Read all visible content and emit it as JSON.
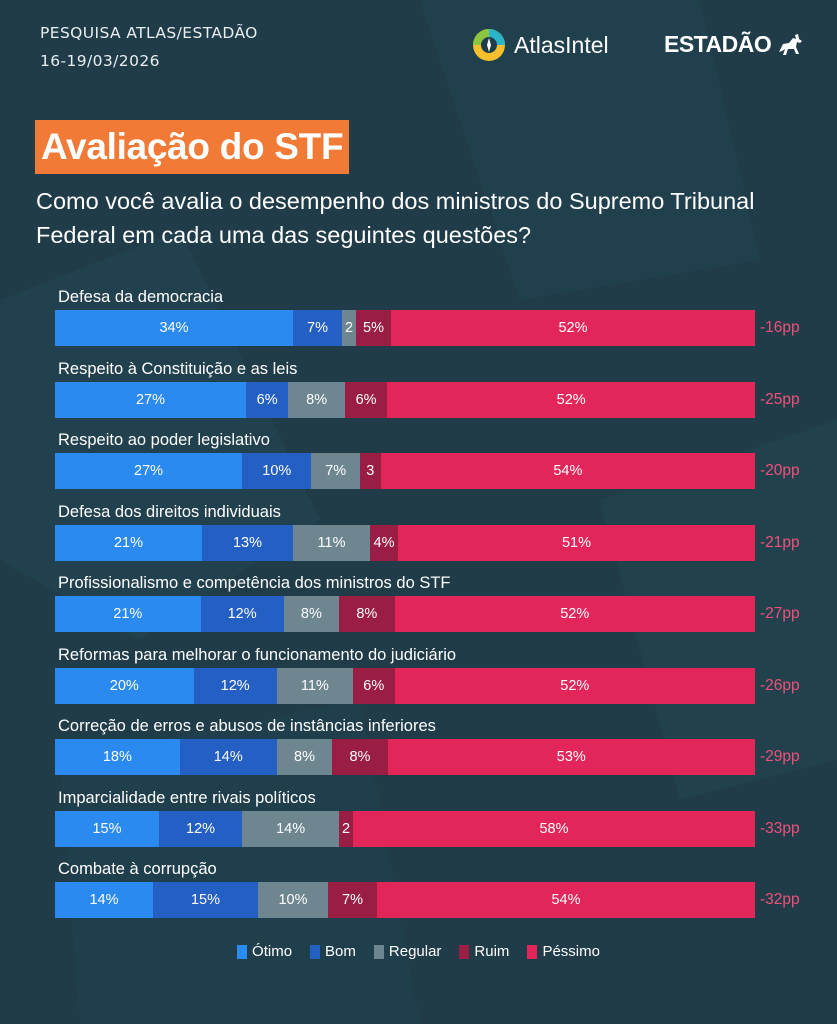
{
  "header": {
    "survey_label": "PESQUISA ATLAS/ESTADÃO",
    "survey_dates": "16-19/03/2026",
    "atlas_logo_text": "AtlasIntel",
    "estadao_logo_text": "ESTADÃO"
  },
  "colors": {
    "background": "#1f3c48",
    "title_bg": "#f07a36",
    "otimo": "#2a8af0",
    "bom": "#2460c4",
    "regular": "#6e8690",
    "ruim": "#9a1e44",
    "pessimo": "#e3265a",
    "net": "#f0507a"
  },
  "chart_data": {
    "type": "bar",
    "orientation": "horizontal-stacked-100",
    "title": "Avaliação do STF",
    "subtitle": "Como você avalia o desempenho dos ministros do Supremo Tribunal Federal em cada uma das seguintes questões?",
    "series_names": [
      "Ótimo",
      "Bom",
      "Regular",
      "Ruim",
      "Péssimo"
    ],
    "rows": [
      {
        "label": "Defesa da democracia",
        "values": [
          34,
          7,
          2,
          5,
          52
        ],
        "value_labels": [
          "34%",
          "7%",
          "2",
          "5%",
          "52%"
        ],
        "net": "-16pp"
      },
      {
        "label": "Respeito à Constituição e as leis",
        "values": [
          27,
          6,
          8,
          6,
          52
        ],
        "value_labels": [
          "27%",
          "6%",
          "8%",
          "6%",
          "52%"
        ],
        "net": "-25pp"
      },
      {
        "label": "Respeito ao poder legislativo",
        "values": [
          27,
          10,
          7,
          3,
          54
        ],
        "value_labels": [
          "27%",
          "10%",
          "7%",
          "3",
          "54%"
        ],
        "net": "-20pp"
      },
      {
        "label": "Defesa dos direitos individuais",
        "values": [
          21,
          13,
          11,
          4,
          51
        ],
        "value_labels": [
          "21%",
          "13%",
          "11%",
          "4%",
          "51%"
        ],
        "net": "-21pp"
      },
      {
        "label": "Profissionalismo e competência dos ministros do STF",
        "values": [
          21,
          12,
          8,
          8,
          52
        ],
        "value_labels": [
          "21%",
          "12%",
          "8%",
          "8%",
          "52%"
        ],
        "net": "-27pp"
      },
      {
        "label": "Reformas para melhorar o funcionamento do judiciário",
        "values": [
          20,
          12,
          11,
          6,
          52
        ],
        "value_labels": [
          "20%",
          "12%",
          "11%",
          "6%",
          "52%"
        ],
        "net": "-26pp"
      },
      {
        "label": "Correção de erros e abusos de instâncias inferiores",
        "values": [
          18,
          14,
          8,
          8,
          53
        ],
        "value_labels": [
          "18%",
          "14%",
          "8%",
          "8%",
          "53%"
        ],
        "net": "-29pp"
      },
      {
        "label": "Imparcialidade entre rivais políticos",
        "values": [
          15,
          12,
          14,
          2,
          58
        ],
        "value_labels": [
          "15%",
          "12%",
          "14%",
          "2",
          "58%"
        ],
        "net": "-33pp"
      },
      {
        "label": "Combate à corrupção",
        "values": [
          14,
          15,
          10,
          7,
          54
        ],
        "value_labels": [
          "14%",
          "15%",
          "10%",
          "7%",
          "54%"
        ],
        "net": "-32pp"
      }
    ],
    "legend": [
      "Ótimo",
      "Bom",
      "Regular",
      "Ruim",
      "Péssimo"
    ],
    "legend_position": "bottom-center"
  }
}
